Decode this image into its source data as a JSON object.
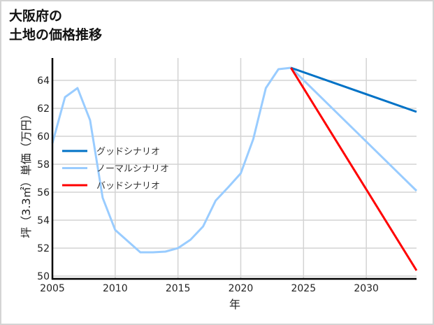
{
  "title": "大阪府の\n土地の価格推移",
  "chart_data": {
    "type": "line",
    "title": "大阪府の土地の価格推移",
    "xlabel": "年",
    "ylabel": "坪（3.3㎡）単価（万円）",
    "xlim": [
      2005,
      2034
    ],
    "ylim": [
      49.8,
      65.6
    ],
    "xticks": [
      2005,
      2010,
      2015,
      2020,
      2025,
      2030
    ],
    "yticks": [
      50,
      52,
      54,
      56,
      58,
      60,
      62,
      64
    ],
    "grid": true,
    "legend_position": "center-left",
    "series": [
      {
        "name": "グッドシナリオ",
        "color": "#0072c6",
        "x": [
          2024,
          2034
        ],
        "values": [
          64.9,
          61.75
        ]
      },
      {
        "name": "ノーマルシナリオ",
        "color": "#99ccff",
        "x": [
          2005,
          2006,
          2007,
          2008,
          2009,
          2010,
          2011,
          2012,
          2013,
          2014,
          2015,
          2016,
          2017,
          2018,
          2019,
          2020,
          2021,
          2022,
          2023,
          2024,
          2034
        ],
        "values": [
          59.5,
          62.8,
          63.45,
          61.15,
          55.6,
          53.3,
          52.5,
          51.7,
          51.7,
          51.75,
          52.0,
          52.6,
          53.55,
          55.4,
          56.35,
          57.35,
          59.8,
          63.45,
          64.8,
          64.9,
          56.1
        ]
      },
      {
        "name": "バッドシナリオ",
        "color": "#ff0000",
        "x": [
          2024,
          2034
        ],
        "values": [
          64.9,
          50.4
        ]
      }
    ]
  }
}
